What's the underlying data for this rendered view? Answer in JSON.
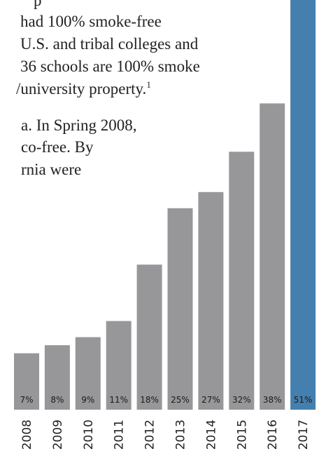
{
  "text_lines": [
    {
      "text": "p",
      "sup": ""
    },
    {
      "text": " had 100% smoke-free",
      "sup": ""
    },
    {
      "text": " U.S. and tribal colleges and",
      "sup": ""
    },
    {
      "text": "36 schools are 100% smoke",
      "sup": ""
    },
    {
      "text": "/university property.",
      "sup": "1"
    },
    {
      "text": "a. In Spring 2008,",
      "sup": ""
    },
    {
      "text": "co-free. By",
      "sup": ""
    },
    {
      "text": "rnia were",
      "sup": ""
    }
  ],
  "chart_data": {
    "type": "bar",
    "categories": [
      "2008",
      "2009",
      "2010",
      "2011",
      "2012",
      "2013",
      "2014",
      "2015",
      "2016",
      "2017"
    ],
    "values": [
      7,
      8,
      9,
      11,
      18,
      25,
      27,
      32,
      38,
      51
    ],
    "value_labels": [
      "7%",
      "8%",
      "9%",
      "11%",
      "18%",
      "25%",
      "27%",
      "32%",
      "38%",
      "51%"
    ],
    "highlight_index": 9,
    "colors": {
      "bar": "#97979a",
      "highlight": "#447fae",
      "label_text": "#1a1a1a"
    },
    "ylim": [
      0,
      51
    ],
    "grid": false,
    "title": "",
    "xlabel": "",
    "ylabel": ""
  }
}
